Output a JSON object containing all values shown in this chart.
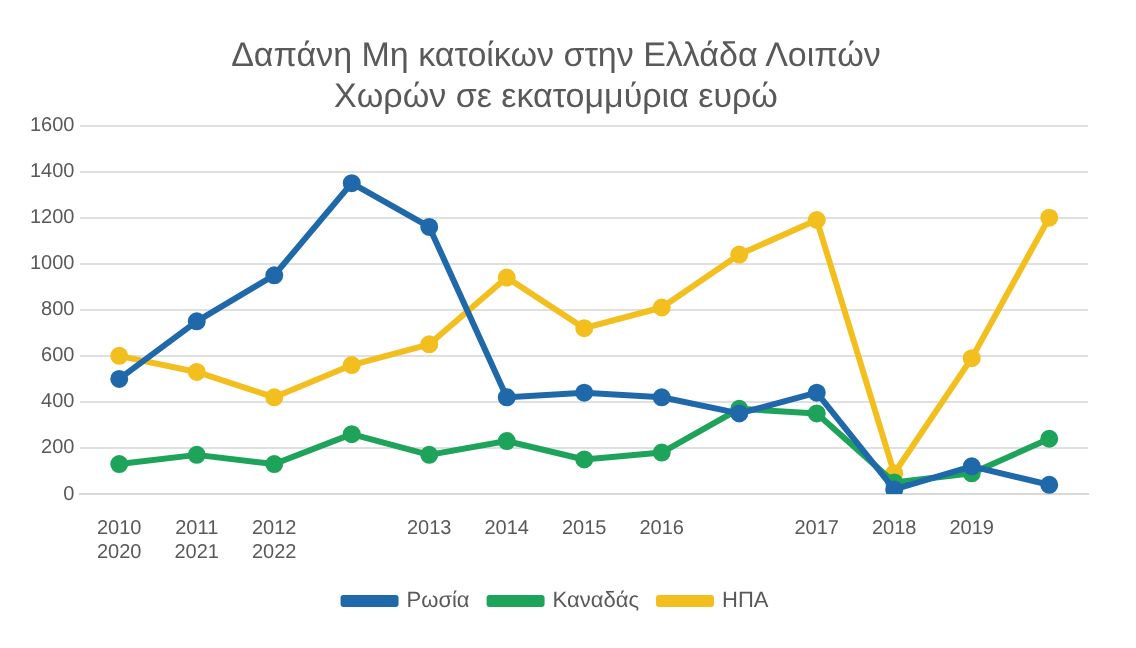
{
  "chart_data": {
    "type": "line",
    "title": "Δαπάνη Μη κατοίκων στην Ελλάδα Λοιπών Χωρών σε εκατομμύρια ευρώ",
    "categories": [
      "2010 2020",
      "2011 2021",
      "2012 2022",
      null,
      "2013",
      "2014",
      "2015",
      "2016",
      null,
      "2017",
      "2018",
      "2019",
      null
    ],
    "series": [
      {
        "name": "ΗΠΑ",
        "color": "#f2bf1f",
        "values": [
          600,
          530,
          420,
          560,
          650,
          940,
          720,
          810,
          1040,
          1190,
          90,
          590,
          1200
        ]
      },
      {
        "name": "Καναδάς",
        "color": "#1ea35a",
        "values": [
          130,
          170,
          130,
          260,
          170,
          230,
          150,
          180,
          370,
          350,
          50,
          90,
          240
        ]
      },
      {
        "name": "Ρωσία",
        "color": "#1f69aa",
        "values": [
          500,
          750,
          950,
          1350,
          1160,
          420,
          440,
          420,
          350,
          440,
          20,
          120,
          40
        ]
      }
    ],
    "ylim": [
      0,
      1600
    ],
    "yticks": [
      0,
      200,
      400,
      600,
      800,
      1000,
      1200,
      1400,
      1600
    ],
    "grid": "y",
    "legend": "bottom",
    "marker": "circle",
    "line_style": "solid"
  }
}
